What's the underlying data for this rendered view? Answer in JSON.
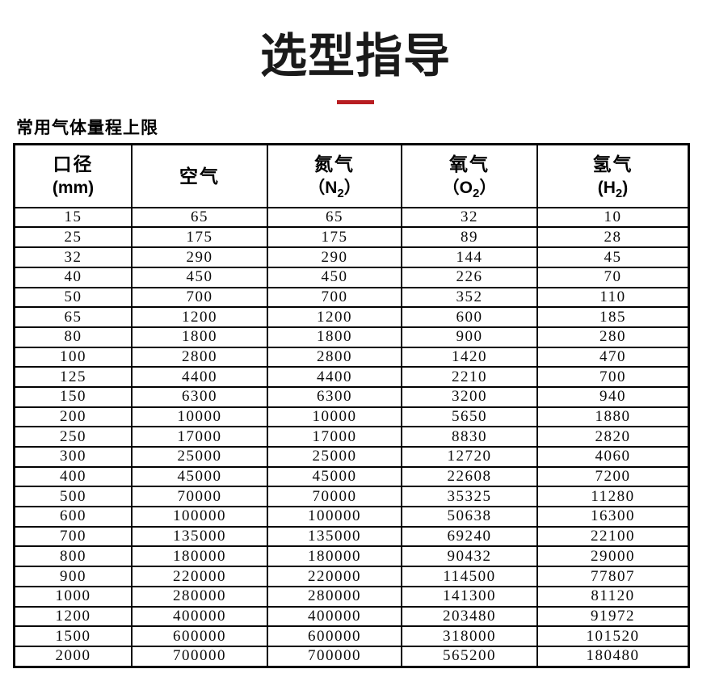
{
  "page": {
    "title": "选型指导",
    "section_label": "常用气体量程上限",
    "accent_color": "#b81d22"
  },
  "table": {
    "columns": [
      {
        "id": "diameter",
        "title": "口径",
        "formula": {
          "open": "(",
          "symbol": "mm",
          "subscript": "",
          "close": ")"
        }
      },
      {
        "id": "air",
        "title": "空气",
        "formula": {
          "open": "",
          "symbol": "",
          "subscript": "",
          "close": ""
        }
      },
      {
        "id": "nitrogen",
        "title": "氮气",
        "formula": {
          "open": "（",
          "symbol": "N",
          "subscript": "2",
          "close": "）"
        }
      },
      {
        "id": "oxygen",
        "title": "氧气",
        "formula": {
          "open": "（",
          "symbol": "O",
          "subscript": "2",
          "close": "）"
        }
      },
      {
        "id": "hydrogen",
        "title": "氢气",
        "formula": {
          "open": "(",
          "symbol": "H",
          "subscript": "2",
          "close": ")"
        }
      }
    ],
    "rows": [
      [
        "15",
        "65",
        "65",
        "32",
        "10"
      ],
      [
        "25",
        "175",
        "175",
        "89",
        "28"
      ],
      [
        "32",
        "290",
        "290",
        "144",
        "45"
      ],
      [
        "40",
        "450",
        "450",
        "226",
        "70"
      ],
      [
        "50",
        "700",
        "700",
        "352",
        "110"
      ],
      [
        "65",
        "1200",
        "1200",
        "600",
        "185"
      ],
      [
        "80",
        "1800",
        "1800",
        "900",
        "280"
      ],
      [
        "100",
        "2800",
        "2800",
        "1420",
        "470"
      ],
      [
        "125",
        "4400",
        "4400",
        "2210",
        "700"
      ],
      [
        "150",
        "6300",
        "6300",
        "3200",
        "940"
      ],
      [
        "200",
        "10000",
        "10000",
        "5650",
        "1880"
      ],
      [
        "250",
        "17000",
        "17000",
        "8830",
        "2820"
      ],
      [
        "300",
        "25000",
        "25000",
        "12720",
        "4060"
      ],
      [
        "400",
        "45000",
        "45000",
        "22608",
        "7200"
      ],
      [
        "500",
        "70000",
        "70000",
        "35325",
        "11280"
      ],
      [
        "600",
        "100000",
        "100000",
        "50638",
        "16300"
      ],
      [
        "700",
        "135000",
        "135000",
        "69240",
        "22100"
      ],
      [
        "800",
        "180000",
        "180000",
        "90432",
        "29000"
      ],
      [
        "900",
        "220000",
        "220000",
        "114500",
        "77807"
      ],
      [
        "1000",
        "280000",
        "280000",
        "141300",
        "81120"
      ],
      [
        "1200",
        "400000",
        "400000",
        "203480",
        "91972"
      ],
      [
        "1500",
        "600000",
        "600000",
        "318000",
        "101520"
      ],
      [
        "2000",
        "700000",
        "700000",
        "565200",
        "180480"
      ]
    ]
  }
}
